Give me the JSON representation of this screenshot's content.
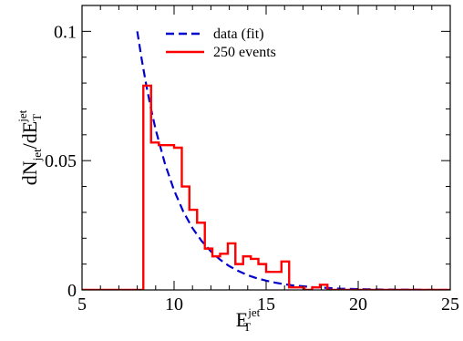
{
  "chart_data": {
    "type": "line",
    "xlabel": {
      "base": "E",
      "sub": "T",
      "sup": "jet"
    },
    "ylabel": {
      "parts": [
        {
          "t": "dN",
          "k": "n"
        },
        {
          "t": "jet",
          "k": "sub"
        },
        {
          "t": "/dE",
          "k": "n"
        },
        {
          "t": "T",
          "k": "sub"
        },
        {
          "t": "jet",
          "k": "sup"
        }
      ]
    },
    "xlim": [
      5,
      25
    ],
    "ylim": [
      0,
      0.11
    ],
    "xticks": [
      5,
      10,
      15,
      20,
      25
    ],
    "xtick_labels": [
      "5",
      "10",
      "15",
      "20",
      "25"
    ],
    "yticks": [
      0,
      0.05,
      0.1
    ],
    "ytick_labels": [
      "0",
      "0.05",
      "0.1"
    ],
    "x_minor_step": 1,
    "y_minor_step": 0.01,
    "grid": false,
    "legend_position": "top-center",
    "series": [
      {
        "name": "data (fit)",
        "style": "dashed",
        "color": "#0000cc",
        "x": [
          8.0,
          8.25,
          8.5,
          8.75,
          9.0,
          9.5,
          10.0,
          10.5,
          11.0,
          11.5,
          12.0,
          12.5,
          13.0,
          13.5,
          14.0,
          14.5,
          15.0,
          15.5,
          16.0,
          16.5,
          17.0,
          17.5,
          18.0,
          18.5,
          19.0,
          19.5,
          20.0,
          21.0,
          22.0,
          23.0,
          24.0,
          25.0
        ],
        "y": [
          0.1,
          0.0888,
          0.0788,
          0.0699,
          0.062,
          0.0489,
          0.0385,
          0.0303,
          0.0239,
          0.0189,
          0.0149,
          0.0117,
          0.0092,
          0.0073,
          0.0057,
          0.0045,
          0.0036,
          0.0028,
          0.0022,
          0.0017,
          0.0014,
          0.0011,
          0.0009,
          0.0007,
          0.0005,
          0.0004,
          0.0003,
          0.0002,
          0.0001,
          0.0001,
          0.0,
          0.0
        ]
      },
      {
        "name": "250 events",
        "style": "step",
        "color": "#ff0000",
        "bin_edges": [
          5.0,
          8.33,
          8.75,
          9.17,
          9.58,
          10.0,
          10.42,
          10.83,
          11.25,
          11.67,
          12.08,
          12.5,
          12.92,
          13.33,
          13.75,
          14.17,
          14.58,
          15.0,
          15.42,
          15.83,
          16.25,
          16.67,
          17.08,
          17.5,
          17.92,
          18.33,
          25.0
        ],
        "values": [
          0.0,
          0.079,
          0.057,
          0.056,
          0.056,
          0.055,
          0.04,
          0.031,
          0.026,
          0.016,
          0.013,
          0.014,
          0.018,
          0.01,
          0.013,
          0.012,
          0.01,
          0.007,
          0.007,
          0.011,
          0.001,
          0.001,
          0.0,
          0.001,
          0.002,
          0.0
        ]
      }
    ]
  }
}
